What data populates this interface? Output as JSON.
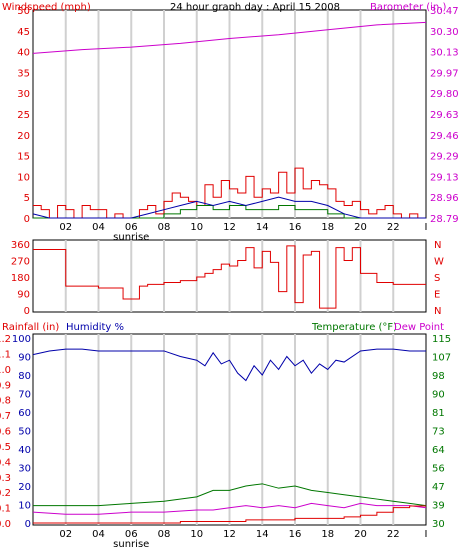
{
  "title": "24 hour graph day : April 15 2008",
  "colors": {
    "red": "#e00000",
    "magenta": "#cc00cc",
    "blue": "#0000aa",
    "green": "#007700",
    "grid": "#d0d0d0",
    "frame": "#000000"
  },
  "x_ticks": [
    "02",
    "04",
    "06",
    "08",
    "10",
    "12",
    "14",
    "16",
    "18",
    "20",
    "22",
    "I"
  ],
  "sunrise_label": "sunrise",
  "chart_data": [
    {
      "type": "line",
      "name": "wind-barometer",
      "left_label": "Windspeed (mph)",
      "right_label": "Barometer (in.)",
      "left_ticks": [
        "0",
        "5",
        "10",
        "15",
        "20",
        "25",
        "30",
        "35",
        "40",
        "45",
        "50"
      ],
      "right_ticks": [
        "28.79",
        "28.96",
        "29.13",
        "29.29",
        "29.46",
        "29.63",
        "29.80",
        "29.97",
        "30.13",
        "30.30",
        "30.47"
      ],
      "ylim_left": [
        0,
        50
      ],
      "ylim_right": [
        28.79,
        30.47
      ],
      "barometer": {
        "x": [
          0,
          3,
          6,
          9,
          12,
          15,
          18,
          21,
          24
        ],
        "y": [
          30.12,
          30.15,
          30.17,
          30.2,
          30.24,
          30.27,
          30.31,
          30.35,
          30.37
        ]
      },
      "wind_gust": {
        "x": [
          0,
          0.5,
          1,
          1.5,
          2,
          2.5,
          3,
          3.5,
          4,
          4.5,
          5,
          5.5,
          6,
          6.5,
          7,
          7.5,
          8,
          8.5,
          9,
          9.5,
          10,
          10.5,
          11,
          11.5,
          12,
          12.5,
          13,
          13.5,
          14,
          14.5,
          15,
          15.5,
          16,
          16.5,
          17,
          17.5,
          18,
          18.5,
          19,
          19.5,
          20,
          20.5,
          21,
          21.5,
          22,
          22.5,
          23,
          23.5,
          24
        ],
        "y": [
          3,
          2,
          0,
          3,
          2,
          0,
          3,
          2,
          2,
          0,
          1,
          0,
          0,
          2,
          3,
          1,
          4,
          6,
          5,
          4,
          3,
          8,
          5,
          9,
          7,
          6,
          10,
          5,
          7,
          6,
          11,
          6,
          12,
          7,
          9,
          8,
          7,
          4,
          3,
          4,
          2,
          1,
          2,
          3,
          1,
          0,
          1,
          0,
          0
        ]
      },
      "wind_speed": {
        "x": [
          0,
          1,
          2,
          3,
          4,
          5,
          6,
          7,
          8,
          9,
          10,
          11,
          12,
          13,
          14,
          15,
          16,
          17,
          18,
          19,
          20,
          21,
          22,
          23,
          24
        ],
        "y": [
          1,
          0,
          0,
          0,
          0,
          0,
          0,
          1,
          2,
          3,
          4,
          3,
          4,
          3,
          4,
          5,
          4,
          4,
          3,
          1,
          0,
          0,
          0,
          0,
          0
        ]
      },
      "wind_low": {
        "x": [
          0,
          1,
          2,
          3,
          4,
          5,
          6,
          7,
          8,
          9,
          10,
          11,
          12,
          13,
          14,
          15,
          16,
          17,
          18,
          19,
          20,
          21,
          22,
          23,
          24
        ],
        "y": [
          0,
          0,
          0,
          0,
          0,
          0,
          0,
          0,
          1,
          2,
          3,
          2,
          3,
          2,
          2,
          3,
          2,
          2,
          1,
          0,
          0,
          0,
          0,
          0,
          0
        ]
      }
    },
    {
      "type": "line",
      "name": "wind-direction",
      "left_ticks": [
        "0",
        "90",
        "180",
        "270",
        "360"
      ],
      "right_ticks": [
        "N",
        "E",
        "S",
        "W",
        "N"
      ],
      "ylim": [
        0,
        360
      ],
      "direction": {
        "x": [
          0,
          1,
          2,
          3,
          4,
          5,
          5.5,
          6,
          6.5,
          7,
          8,
          9,
          10,
          10.5,
          11,
          11.5,
          12,
          12.5,
          13,
          13.5,
          14,
          14.5,
          15,
          15.5,
          16,
          16.5,
          17,
          17.5,
          18,
          18.5,
          19,
          19.5,
          20,
          21,
          22,
          23,
          24
        ],
        "y": [
          330,
          330,
          130,
          130,
          120,
          120,
          60,
          60,
          130,
          140,
          150,
          160,
          180,
          200,
          220,
          250,
          240,
          270,
          340,
          230,
          320,
          260,
          100,
          350,
          40,
          300,
          320,
          10,
          10,
          340,
          270,
          340,
          200,
          150,
          140,
          140,
          140
        ]
      }
    },
    {
      "type": "line",
      "name": "rain-humidity-temperature",
      "left_label": "Rainfall (in)",
      "humidity_label": "Humidity %",
      "right_label": "Temperature (°F)",
      "dewpoint_label": "Dew Point",
      "left_rain_ticks": [
        "0.0",
        "0.1",
        "0.2",
        "0.3",
        "0.4",
        "0.5",
        "0.6",
        "0.7",
        "0.8",
        "0.9",
        "1.0",
        "1.1",
        "1.2"
      ],
      "left_humidity_ticks": [
        "0",
        "10",
        "20",
        "30",
        "40",
        "50",
        "60",
        "70",
        "80",
        "90",
        "100"
      ],
      "right_ticks": [
        "30",
        "39",
        "47",
        "56",
        "64",
        "73",
        "81",
        "90",
        "98",
        "107",
        "115"
      ],
      "ylim_humidity": [
        0,
        100
      ],
      "ylim_temperature": [
        30,
        115
      ],
      "humidity": {
        "x": [
          0,
          1,
          2,
          3,
          4,
          5,
          6,
          7,
          8,
          9,
          10,
          10.5,
          11,
          11.5,
          12,
          12.5,
          13,
          13.5,
          14,
          14.5,
          15,
          15.5,
          16,
          16.5,
          17,
          17.5,
          18,
          18.5,
          19,
          20,
          21,
          22,
          23,
          24
        ],
        "y": [
          91,
          93,
          94,
          94,
          93,
          93,
          93,
          93,
          93,
          90,
          88,
          85,
          92,
          86,
          88,
          81,
          77,
          85,
          80,
          88,
          83,
          90,
          85,
          88,
          81,
          86,
          83,
          88,
          87,
          93,
          94,
          94,
          93,
          93
        ]
      },
      "temperature": {
        "x": [
          0,
          2,
          4,
          6,
          8,
          10,
          11,
          12,
          13,
          14,
          15,
          16,
          17,
          18,
          19,
          20,
          21,
          22,
          23,
          24
        ],
        "y": [
          38,
          38,
          38,
          39,
          40,
          42,
          45,
          45,
          47,
          48,
          46,
          47,
          45,
          44,
          43,
          42,
          41,
          40,
          39,
          38
        ]
      },
      "dew_point": {
        "x": [
          0,
          2,
          4,
          6,
          8,
          10,
          11,
          12,
          13,
          14,
          15,
          16,
          17,
          18,
          19,
          20,
          21,
          22,
          23,
          24
        ],
        "y": [
          35,
          34,
          34,
          35,
          35,
          36,
          36,
          37,
          38,
          37,
          38,
          37,
          39,
          38,
          37,
          39,
          38,
          38,
          38,
          37
        ]
      },
      "rainfall": {
        "x": [
          0,
          8,
          9,
          11,
          13,
          16,
          19,
          20,
          21,
          22,
          23,
          24
        ],
        "y": [
          0.0,
          0.0,
          0.01,
          0.01,
          0.02,
          0.03,
          0.04,
          0.05,
          0.07,
          0.1,
          0.11,
          0.11
        ]
      }
    }
  ]
}
